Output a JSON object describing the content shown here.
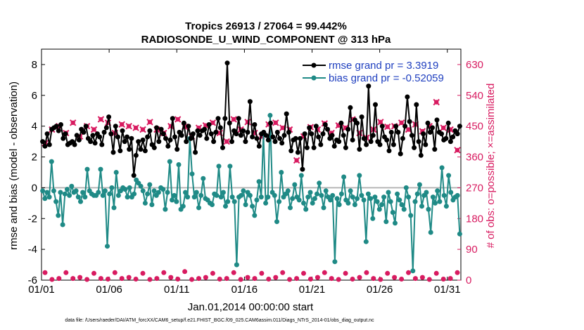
{
  "chart_data": {
    "type": "line",
    "title": "Tropics 26913 / 27064 = 99.442%",
    "subtitle": "RADIOSONDE_U_WIND_COMPONENT @ 313 hPa",
    "xlabel": "Jan.01,2014 00:00:00 start",
    "ylabel": "rmse and bias (model - observation)",
    "y2label": "# of obs: o=possible; ×=assimilated",
    "footnote": "data file: /Users/raeder/DAI/ATM_forcXX/CAM6_setup/f.e21.FHIST_BGC.f09_025.CAM6assim.011/Diags_NTrS_2014-01/obs_diag_output.nc",
    "x_ticks": [
      "01/01",
      "01/06",
      "01/11",
      "01/16",
      "01/21",
      "01/26",
      "01/31"
    ],
    "x_tick_days": [
      1,
      6,
      11,
      16,
      21,
      26,
      31
    ],
    "xlim": [
      1,
      32
    ],
    "ylim": [
      -6,
      9
    ],
    "y_ticks": [
      -6,
      -4,
      -2,
      0,
      2,
      4,
      6,
      8
    ],
    "y2lim": [
      0,
      675
    ],
    "y2_ticks": [
      0,
      90,
      180,
      270,
      360,
      450,
      540,
      630
    ],
    "series": [
      {
        "name": "rmse",
        "legend": "rmse grand pr = 3.3919",
        "color": "#000000",
        "axis": "left",
        "values": [
          3.0,
          2.7,
          3.5,
          2.8,
          3.8,
          3.9,
          4.0,
          3.7,
          4.1,
          3.2,
          3.5,
          2.8,
          2.9,
          3.0,
          2.8,
          3.4,
          3.1,
          3.8,
          3.6,
          4.0,
          3.2,
          3.0,
          3.4,
          2.9,
          3.5,
          3.3,
          2.8,
          3.6,
          3.9,
          4.6,
          3.5,
          2.3,
          4.0,
          3.3,
          2.4,
          3.7,
          3.0,
          3.3,
          2.5,
          3.2,
          0.8,
          2.1,
          3.0,
          2.5,
          3.1,
          2.4,
          3.3,
          3.7,
          2.8,
          2.6,
          3.9,
          3.0,
          3.8,
          3.5,
          3.2,
          2.7,
          3.1,
          4.5,
          3.3,
          2.5,
          3.6,
          3.4,
          4.2,
          3.0,
          4.0,
          3.2,
          3.5,
          2.3,
          3.7,
          3.4,
          3.7,
          3.8,
          3.2,
          4.1,
          3.5,
          3.0,
          3.6,
          4.5,
          3.9,
          2.6,
          4.5,
          8.1,
          4.2,
          3.0,
          3.7,
          3.5,
          4.5,
          3.4,
          3.7,
          3.0,
          3.6,
          5.6,
          3.3,
          4.1,
          3.2,
          2.7,
          3.5,
          3.6,
          3.4,
          3.1,
          4.2,
          3.3,
          3.0,
          3.6,
          3.2,
          2.9,
          3.4,
          4.8,
          3.6,
          2.4,
          3.1,
          3.2,
          2.3,
          3.2,
          1.2,
          3.5,
          2.6,
          3.9,
          3.5,
          2.6,
          4.0,
          3.3,
          2.8,
          3.5,
          4.1,
          3.8,
          3.2,
          3.4,
          2.7,
          3.1,
          3.0,
          4.2,
          3.4,
          2.6,
          3.8,
          5.2,
          3.1,
          4.4,
          4.2,
          2.5,
          4.6,
          3.2,
          2.8,
          6.6,
          3.0,
          3.4,
          5.4,
          3.0,
          2.8,
          4.0,
          3.3,
          3.1,
          2.4,
          3.6,
          2.8,
          4.0,
          3.6,
          2.2,
          3.2,
          4.0,
          5.9,
          4.3,
          3.4,
          2.6,
          5.4,
          3.0,
          2.1,
          3.5,
          2.8,
          4.2,
          3.6,
          3.9,
          2.5,
          4.4,
          3.6,
          3.5,
          3.1,
          3.2,
          4.2,
          3.0,
          3.3,
          3.7,
          3.5,
          4.0
        ]
      },
      {
        "name": "bias",
        "legend": "bias grand pr = -0.52059",
        "color": "#1f8a86",
        "axis": "left",
        "values": [
          -0.2,
          -0.7,
          -0.3,
          -0.6,
          1.7,
          -0.2,
          -0.9,
          -1.8,
          -0.3,
          -2.4,
          -0.4,
          -0.1,
          -0.5,
          0.1,
          -0.3,
          -0.2,
          -0.6,
          -0.9,
          -0.3,
          -0.6,
          1.2,
          -0.2,
          -0.4,
          -0.5,
          -0.5,
          -0.3,
          1.2,
          -0.5,
          -0.2,
          -3.8,
          -0.4,
          0.0,
          -1.3,
          1.0,
          -0.5,
          -0.2,
          0.0,
          -0.1,
          -0.6,
          0.0,
          -0.6,
          -0.4,
          0.5,
          0.3,
          0.1,
          -0.2,
          -1.0,
          -0.4,
          0.2,
          -1.1,
          -0.2,
          -0.5,
          -0.3,
          0.0,
          -0.1,
          -1.4,
          -0.3,
          1.7,
          -0.8,
          -0.5,
          -0.9,
          1.5,
          -1.4,
          -1.2,
          -0.3,
          -0.6,
          3.2,
          0.9,
          -0.6,
          -0.3,
          -1.3,
          -0.5,
          0.6,
          -0.7,
          -0.8,
          -1.0,
          -1.1,
          -0.4,
          -0.5,
          1.4,
          -0.6,
          -0.3,
          -1.2,
          -0.9,
          1.4,
          -0.6,
          -0.9,
          -5.0,
          -0.6,
          -0.5,
          -0.2,
          -1.1,
          -0.3,
          -0.5,
          -1.2,
          -1.8,
          -0.8,
          0.4,
          -0.6,
          3.5,
          -1.0,
          -0.6,
          4.7,
          -0.3,
          -0.5,
          -2.2,
          -0.9,
          1.0,
          -0.6,
          -0.4,
          -0.2,
          -1.3,
          -0.7,
          0.2,
          -0.6,
          -0.8,
          0.8,
          -1.0,
          -1.4,
          -0.6,
          -0.3,
          -1.0,
          -0.7,
          -0.4,
          0.3,
          -0.5,
          -1.3,
          -0.2,
          -0.6,
          -0.8,
          -0.5,
          -4.8,
          -0.7,
          -1.1,
          -0.4,
          0.7,
          -0.8,
          -1.0,
          -0.2,
          -0.6,
          -1.1,
          -0.7,
          0.8,
          -0.5,
          -0.8,
          -3.5,
          -0.4,
          -0.7,
          -2.0,
          -0.6,
          -0.9,
          -1.4,
          -1.1,
          -0.6,
          -2.2,
          -0.3,
          -0.9,
          -1.6,
          -2.3,
          -0.4,
          -0.8,
          -1.1,
          -1.4,
          0.0,
          -0.6,
          -1.8,
          -5.4,
          -0.9,
          -0.4,
          0.2,
          -1.2,
          -0.5,
          -0.3,
          -1.4,
          -2.9,
          -0.6,
          -1.0,
          -0.2,
          -0.9,
          1.3,
          -0.5,
          -1.2,
          0.8,
          -0.3,
          -0.8,
          -0.6,
          -0.5,
          -3.0
        ]
      },
      {
        "name": "# of obs possible",
        "color": "#d81b60",
        "axis": "right",
        "marker": "circle",
        "values": [
          22,
          2,
          5,
          22,
          5,
          8,
          2,
          20,
          5,
          3,
          22,
          5,
          8,
          3,
          20,
          2,
          5,
          22,
          8,
          3,
          25,
          2,
          5,
          8,
          20,
          3,
          5,
          22,
          2,
          8,
          5,
          20,
          3,
          8,
          22,
          2,
          5,
          20,
          3,
          8,
          22,
          5,
          2,
          20,
          3,
          8,
          22,
          5,
          2,
          20,
          8,
          3,
          22,
          5,
          8,
          2,
          20,
          3,
          5,
          22
        ]
      },
      {
        "name": "# of obs assimilated",
        "color": "#d81b60",
        "axis": "right",
        "marker": "x",
        "values": [
          400,
          440,
          450,
          430,
          460,
          420,
          450,
          440,
          470,
          460,
          430,
          455,
          450,
          445,
          440,
          462,
          440,
          430,
          450,
          470,
          448,
          420,
          445,
          452,
          460,
          430,
          405,
          470,
          440,
          462,
          430,
          420,
          455,
          460,
          445,
          440,
          350,
          420,
          447,
          440,
          458,
          430,
          452,
          445,
          470,
          430,
          416,
          440,
          462,
          448,
          450,
          460,
          440,
          455,
          435,
          450,
          520,
          445,
          440,
          380
        ]
      }
    ],
    "hline": 0
  }
}
